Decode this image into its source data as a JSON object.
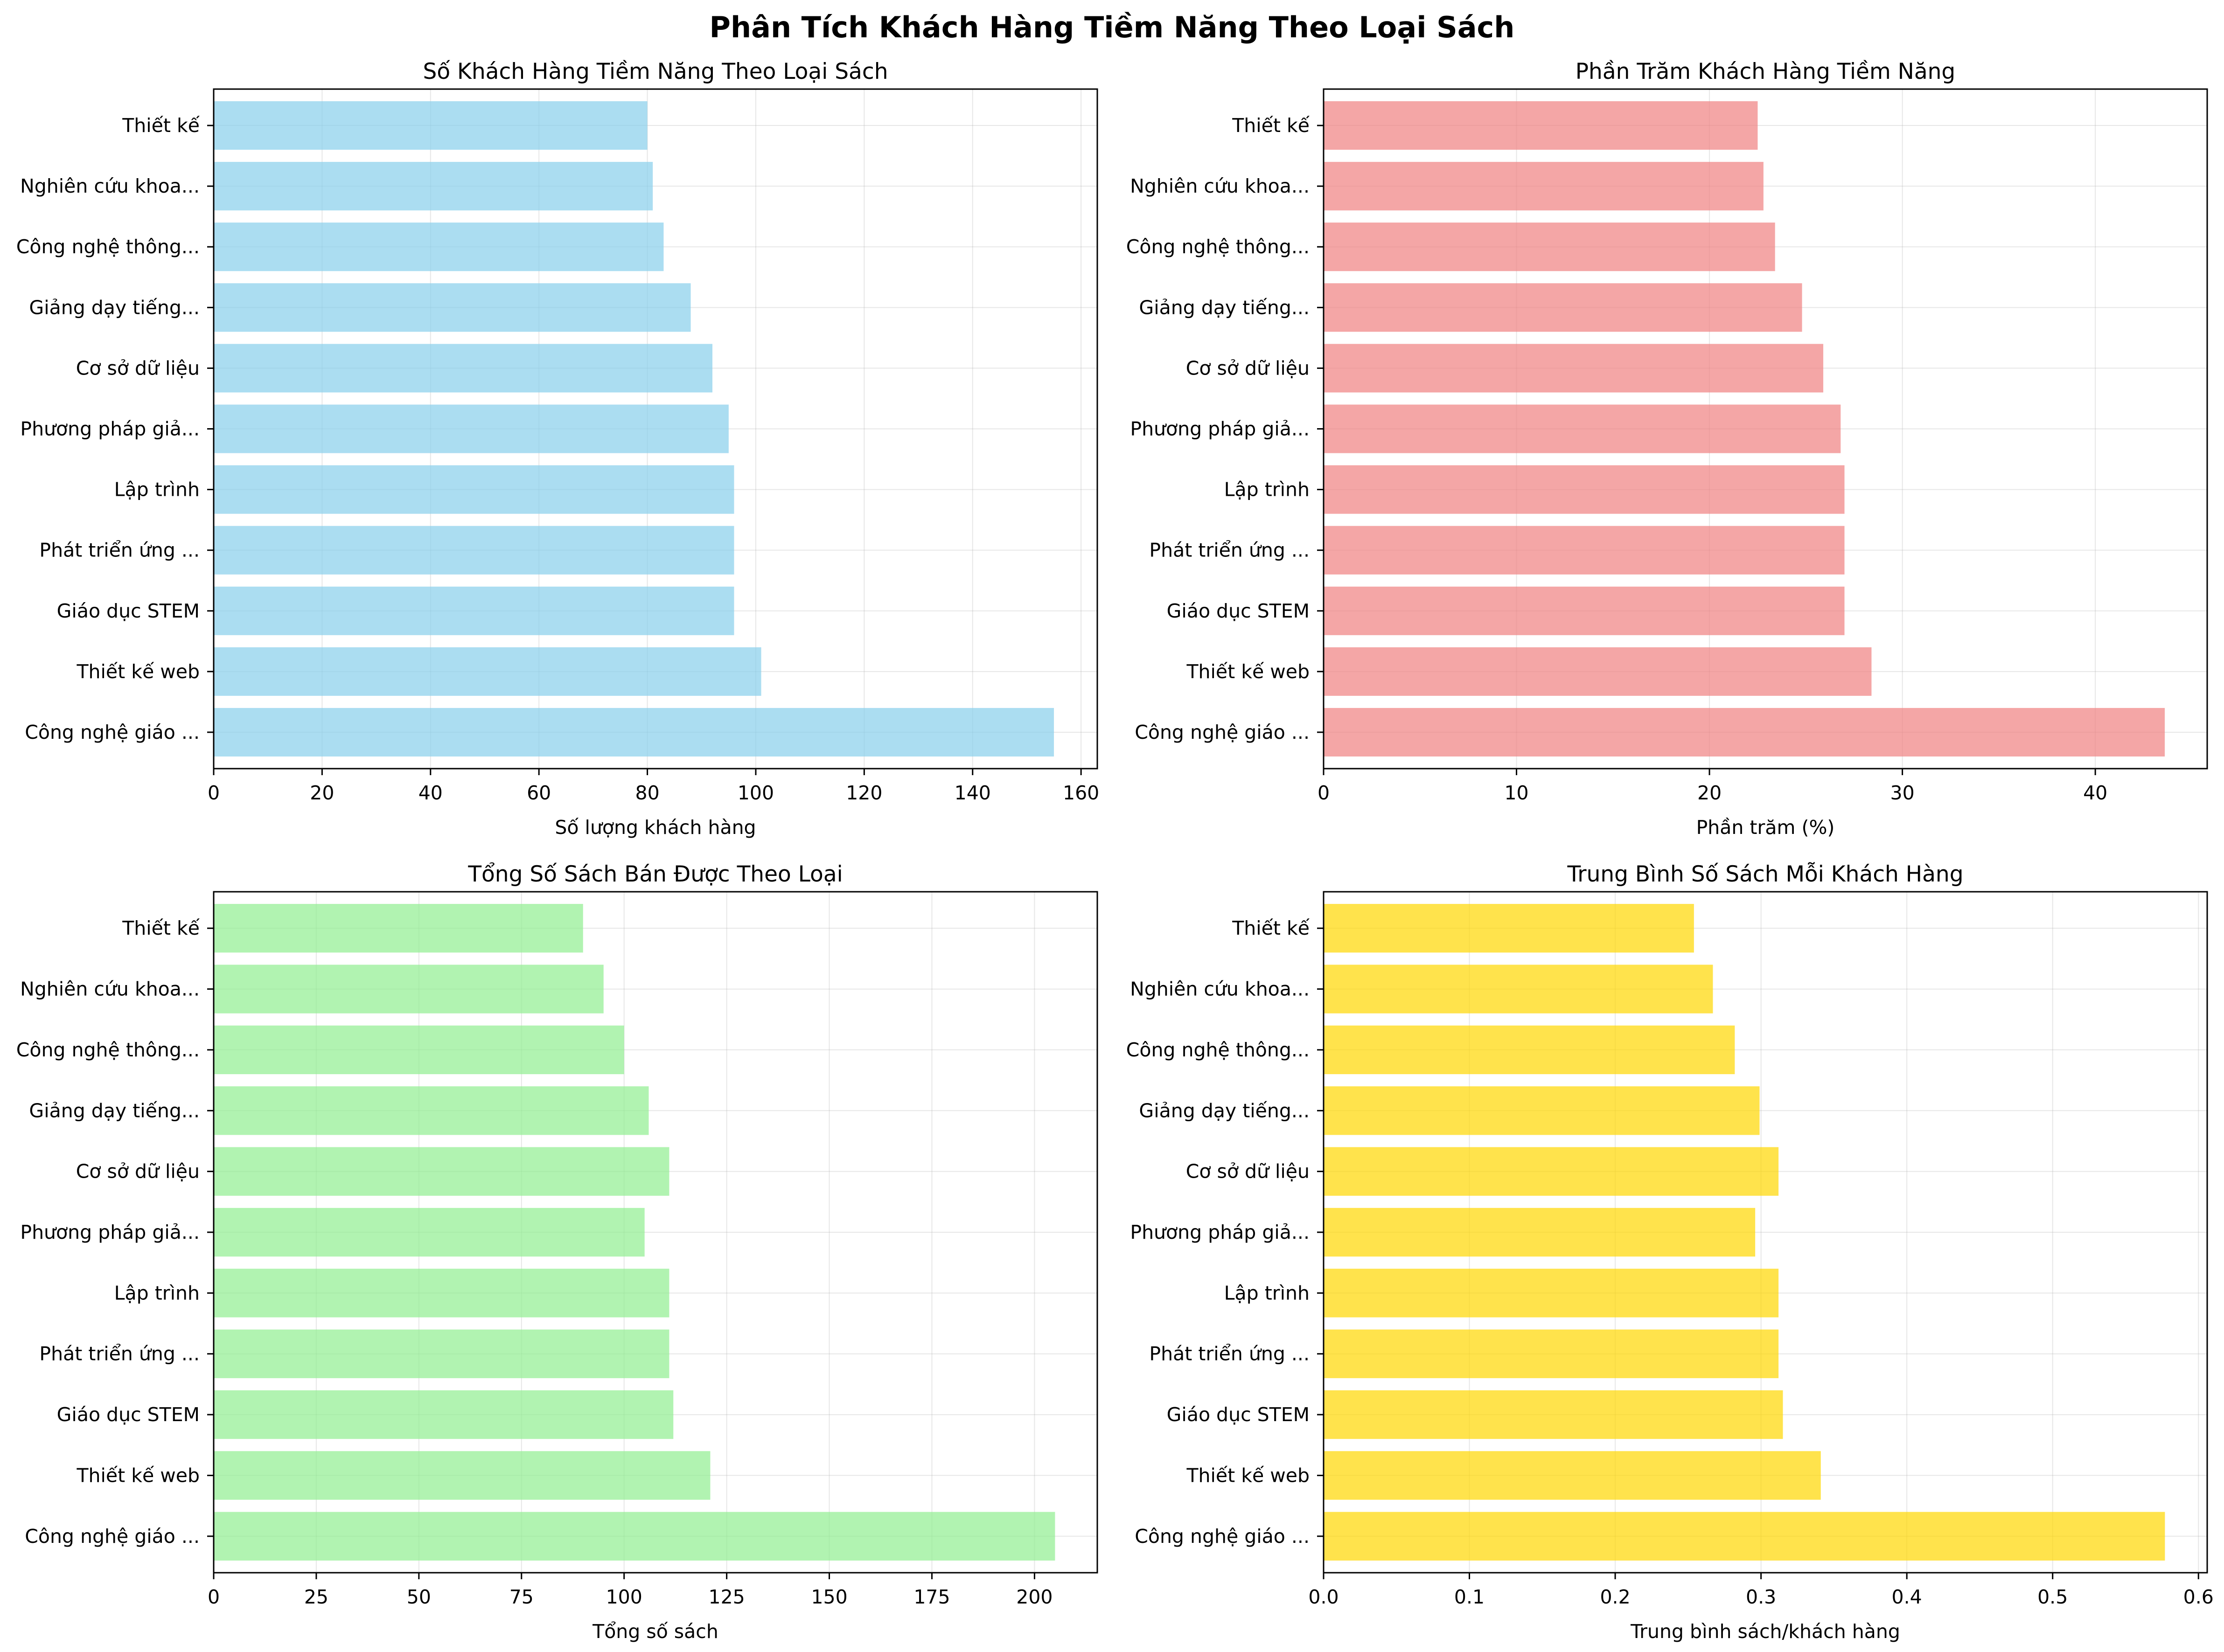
{
  "figure": {
    "title": "Phân Tích Khách Hàng Tiềm Năng Theo Loại Sách"
  },
  "colors": {
    "panel_1": "#87ceeb",
    "panel_2": "#f08080",
    "panel_3": "#90ee90",
    "panel_4": "#ffd700",
    "grid": "#b0b0b0"
  },
  "chart_data": [
    {
      "type": "bar",
      "orientation": "horizontal",
      "title": "Số Khách Hàng Tiềm Năng Theo Loại Sách",
      "xlabel": "Số lượng khách hàng",
      "ylabel": "",
      "categories": [
        "Công nghệ giáo ...",
        "Thiết kế web",
        "Giáo dục STEM",
        "Phát triển ứng ...",
        "Lập trình",
        "Phương pháp giả...",
        "Cơ sở dữ liệu",
        "Giảng dạy tiếng...",
        "Công nghệ thông...",
        "Nghiên cứu khoa...",
        "Thiết kế"
      ],
      "values": [
        155,
        101,
        96,
        96,
        96,
        95,
        92,
        88,
        83,
        81,
        80
      ],
      "xlim": [
        0,
        163
      ],
      "xticks": [
        0,
        20,
        40,
        60,
        80,
        100,
        120,
        140,
        160
      ],
      "xtick_labels": [
        "0",
        "20",
        "40",
        "60",
        "80",
        "100",
        "120",
        "140",
        "160"
      ],
      "grid": true,
      "color": "#87ceeb"
    },
    {
      "type": "bar",
      "orientation": "horizontal",
      "title": "Phần Trăm Khách Hàng Tiềm Năng",
      "xlabel": "Phần trăm (%)",
      "ylabel": "",
      "categories": [
        "Công nghệ giáo ...",
        "Thiết kế web",
        "Giáo dục STEM",
        "Phát triển ứng ...",
        "Lập trình",
        "Phương pháp giả...",
        "Cơ sở dữ liệu",
        "Giảng dạy tiếng...",
        "Công nghệ thông...",
        "Nghiên cứu khoa...",
        "Thiết kế"
      ],
      "values": [
        43.6,
        28.4,
        27.0,
        27.0,
        27.0,
        26.8,
        25.9,
        24.8,
        23.4,
        22.8,
        22.5
      ],
      "xlim": [
        0,
        45.8
      ],
      "xticks": [
        0,
        10,
        20,
        30,
        40
      ],
      "xtick_labels": [
        "0",
        "10",
        "20",
        "30",
        "40"
      ],
      "grid": true,
      "color": "#f08080"
    },
    {
      "type": "bar",
      "orientation": "horizontal",
      "title": "Tổng Số Sách Bán Được Theo Loại",
      "xlabel": "Tổng số sách",
      "ylabel": "",
      "categories": [
        "Công nghệ giáo ...",
        "Thiết kế web",
        "Giáo dục STEM",
        "Phát triển ứng ...",
        "Lập trình",
        "Phương pháp giả...",
        "Cơ sở dữ liệu",
        "Giảng dạy tiếng...",
        "Công nghệ thông...",
        "Nghiên cứu khoa...",
        "Thiết kế"
      ],
      "values": [
        205,
        121,
        112,
        111,
        111,
        105,
        111,
        106,
        100,
        95,
        90
      ],
      "xlim": [
        0,
        215.3
      ],
      "xticks": [
        0,
        25,
        50,
        75,
        100,
        125,
        150,
        175,
        200
      ],
      "xtick_labels": [
        "0",
        "25",
        "50",
        "75",
        "100",
        "125",
        "150",
        "175",
        "200"
      ],
      "grid": true,
      "color": "#90ee90"
    },
    {
      "type": "bar",
      "orientation": "horizontal",
      "title": "Trung Bình Số Sách Mỗi Khách Hàng",
      "xlabel": "Trung bình sách/khách hàng",
      "ylabel": "",
      "categories": [
        "Công nghệ giáo ...",
        "Thiết kế web",
        "Giáo dục STEM",
        "Phát triển ứng ...",
        "Lập trình",
        "Phương pháp giả...",
        "Cơ sở dữ liệu",
        "Giảng dạy tiếng...",
        "Công nghệ thông...",
        "Nghiên cứu khoa...",
        "Thiết kế"
      ],
      "values": [
        0.577,
        0.341,
        0.315,
        0.312,
        0.312,
        0.296,
        0.312,
        0.299,
        0.282,
        0.267,
        0.254
      ],
      "xlim": [
        0,
        0.606
      ],
      "xticks": [
        0,
        0.1,
        0.2,
        0.3,
        0.4,
        0.5,
        0.6
      ],
      "xtick_labels": [
        "0.0",
        "0.1",
        "0.2",
        "0.3",
        "0.4",
        "0.5",
        "0.6"
      ],
      "grid": true,
      "color": "#ffd700"
    }
  ]
}
